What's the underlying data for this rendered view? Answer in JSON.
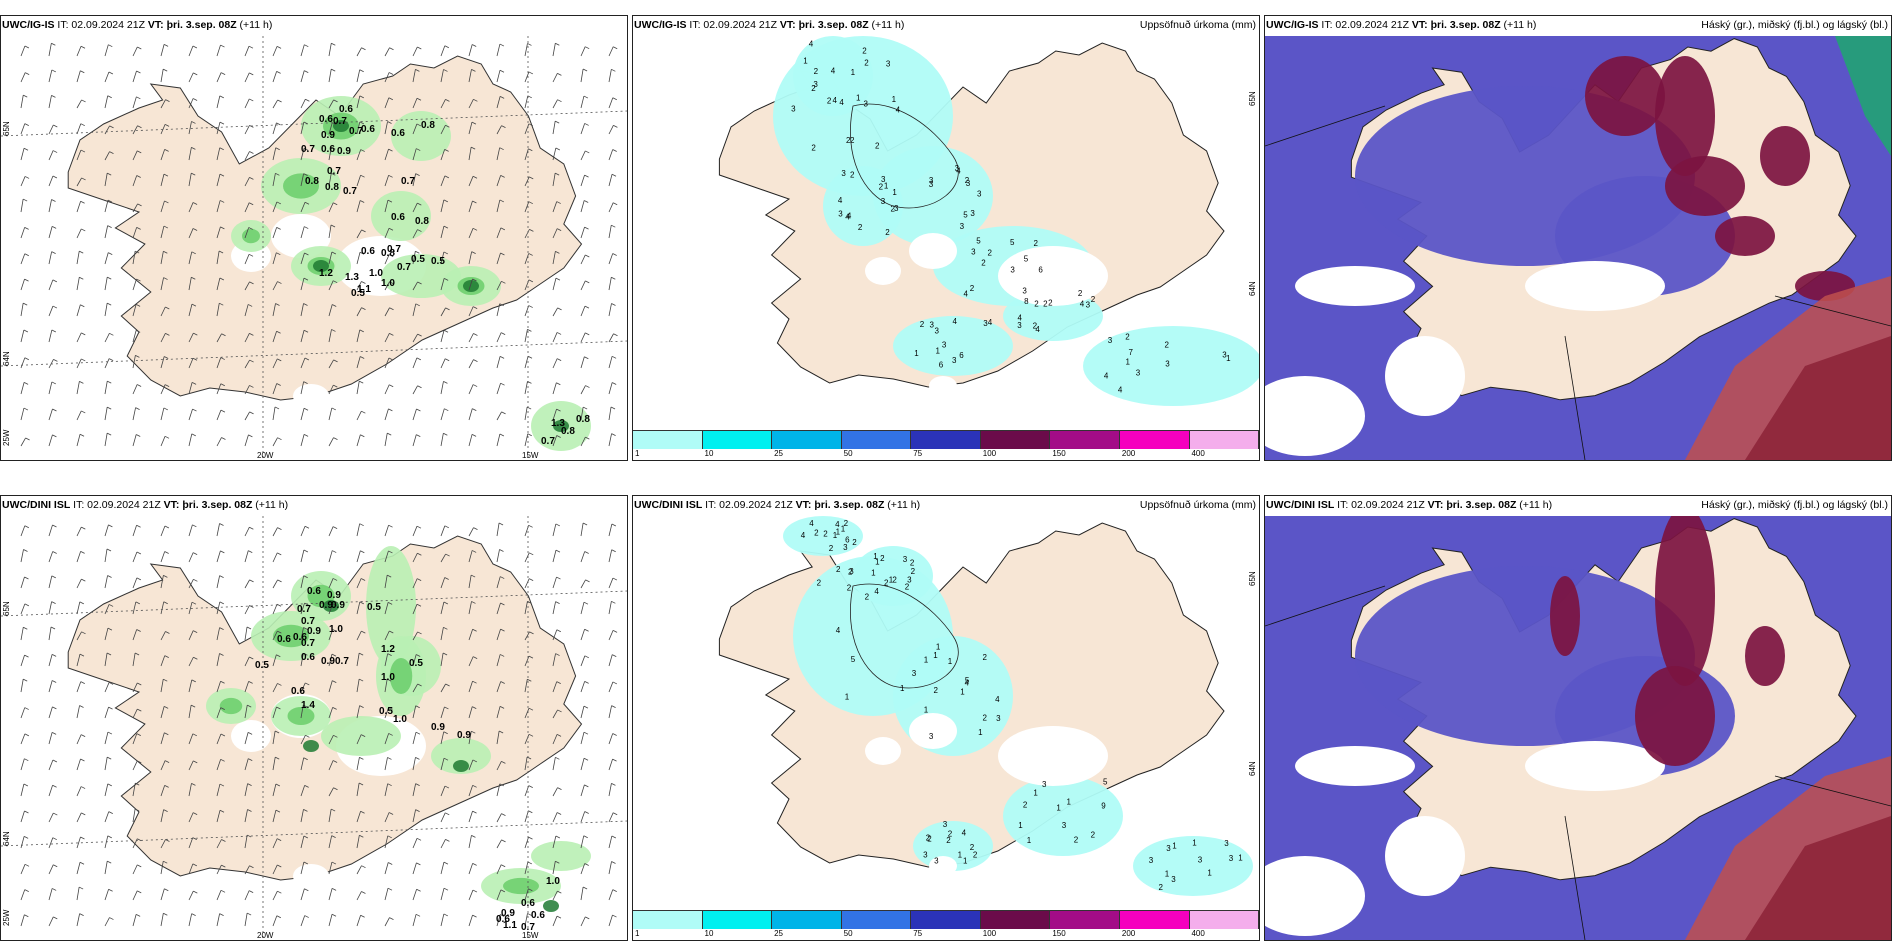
{
  "panels": [
    {
      "id": "p1",
      "title_model": "UWC/IG-IS",
      "title_it": "IT: 02.09.2024 21Z",
      "title_vt_label": "VT:",
      "title_vt": "þri. 3.sep. 08Z",
      "title_offset": "(+11 h)",
      "right_label": "",
      "lon_labels": [
        "20W",
        "15W"
      ],
      "lat_labels": [
        "65N",
        "64N",
        "25W"
      ],
      "values": [
        "0.6",
        "0.6",
        "0.7",
        "0.9",
        "0.7",
        "0.6",
        "0.7",
        "0.6",
        "0.9",
        "0.7",
        "0.8",
        "0.8",
        "0.7",
        "0.6",
        "0.8",
        "0.7",
        "0.6",
        "0.8",
        "0.7",
        "0.5",
        "0.6",
        "0.8",
        "0.7",
        "0.5",
        "1.0",
        "1.3",
        "1.2",
        "1.0",
        "0.5",
        "1.1",
        "1.3",
        "0.8",
        "0.8",
        "0.7"
      ]
    },
    {
      "id": "p2",
      "title_model": "UWC/IG-IS",
      "title_it": "IT: 02.09.2024 21Z",
      "title_vt_label": "VT:",
      "title_vt": "þri. 3.sep. 08Z",
      "title_offset": "(+11 h)",
      "right_label": "Uppsöfnuð úrkoma (mm)",
      "lat_labels": [
        "65N",
        "64N"
      ],
      "values": [
        "4",
        "3",
        "3",
        "3",
        "3",
        "2",
        "3",
        "3",
        "2",
        "3",
        "4",
        "5",
        "6",
        "3",
        "4",
        "2",
        "2",
        "3",
        "4",
        "5",
        "6",
        "8",
        "3",
        "1",
        "2",
        "3",
        "2",
        "3",
        "4",
        "4",
        "3",
        "4",
        "3",
        "3",
        "3",
        "2",
        "2",
        "4",
        "4",
        "4",
        "3",
        "3",
        "3",
        "2",
        "1",
        "3",
        "2",
        "4",
        "3",
        "4",
        "4",
        "2",
        "3",
        "2",
        "1",
        "2",
        "2",
        "3",
        "2",
        "3",
        "3",
        "4",
        "2",
        "4",
        "2",
        "1",
        "1",
        "2",
        "3",
        "2",
        "1",
        "2",
        "2",
        "2",
        "2",
        "4",
        "4",
        "2",
        "7",
        "3",
        "1",
        "5",
        "3",
        "6",
        "1",
        "2",
        "3",
        "1",
        "1",
        "2",
        "2",
        "5",
        "3",
        "2"
      ],
      "colorbar": {
        "colors": [
          "#b0fcf7",
          "#00f0f0",
          "#00b4e8",
          "#3273e5",
          "#2b33b8",
          "#6b0b4a",
          "#a30c87",
          "#f500be",
          "#f4aeec"
        ],
        "ticks": [
          "1",
          "10",
          "25",
          "50",
          "75",
          "100",
          "150",
          "200",
          "400"
        ]
      }
    },
    {
      "id": "p3",
      "title_model": "UWC/IG-IS",
      "title_it": "IT: 02.09.2024 21Z",
      "title_vt_label": "VT:",
      "title_vt": "þri. 3.sep. 08Z",
      "title_offset": "(+11 h)",
      "right_label": "Háský (gr.), miðský (fj.bl.) og lágský (bl.)"
    },
    {
      "id": "p4",
      "title_model": "UWC/DINI ISL",
      "title_it": "IT: 02.09.2024 21Z",
      "title_vt_label": "VT:",
      "title_vt": "þri. 3.sep. 08Z",
      "title_offset": "(+11 h)",
      "right_label": "",
      "lon_labels": [
        "20W",
        "15W"
      ],
      "lat_labels": [
        "65N",
        "64N",
        "25W"
      ],
      "values": [
        "0.6",
        "0.9",
        "0.9",
        "0.7",
        "0.9",
        "0.5",
        "0.7",
        "0.6",
        "0.9",
        "1.0",
        "0.6",
        "0.7",
        "0.6",
        "0.9",
        "0.7",
        "0.5",
        "1.2",
        "0.5",
        "1.0",
        "0.6",
        "1.4",
        "0.5",
        "1.0",
        "0.9",
        "0.9",
        "0.9",
        "0.6",
        "0.6",
        "1.1",
        "0.7",
        "0.6",
        "1.0"
      ]
    },
    {
      "id": "p5",
      "title_model": "UWC/DINI ISL",
      "title_it": "IT: 02.09.2024 21Z",
      "title_vt_label": "VT:",
      "title_vt": "þri. 3.sep. 08Z",
      "title_offset": "(+11 h)",
      "right_label": "Uppsöfnuð úrkoma (mm)",
      "lat_labels": [
        "65N",
        "64N"
      ],
      "values": [
        "2",
        "1",
        "1",
        "2",
        "1",
        "1",
        "2",
        "1",
        "5",
        "4",
        "2",
        "1",
        "3",
        "2",
        "2",
        "2",
        "2",
        "2",
        "2",
        "3",
        "3",
        "3",
        "3",
        "4",
        "3",
        "3",
        "3",
        "3",
        "2",
        "1",
        "2",
        "3",
        "2",
        "3",
        "1",
        "2",
        "2",
        "1",
        "2",
        "2",
        "1",
        "2",
        "2",
        "3",
        "2",
        "1",
        "5",
        "3",
        "4",
        "4",
        "4",
        "2",
        "1",
        "1",
        "1",
        "2",
        "2",
        "1",
        "2",
        "2",
        "1",
        "1",
        "1",
        "1",
        "1",
        "3",
        "1",
        "1",
        "3",
        "3",
        "5",
        "4",
        "6",
        "4",
        "3",
        "1",
        "2",
        "3",
        "1",
        "4",
        "1",
        "9",
        "2",
        "2",
        "1",
        "1",
        "1",
        "2"
      ],
      "colorbar": {
        "colors": [
          "#b0fcf7",
          "#00f0f0",
          "#00b4e8",
          "#3273e5",
          "#2b33b8",
          "#6b0b4a",
          "#a30c87",
          "#f500be",
          "#f4aeec"
        ],
        "ticks": [
          "1",
          "10",
          "25",
          "50",
          "75",
          "100",
          "150",
          "200",
          "400"
        ]
      }
    },
    {
      "id": "p6",
      "title_model": "UWC/DINI ISL",
      "title_it": "IT: 02.09.2024 21Z",
      "title_vt_label": "VT:",
      "title_vt": "þri. 3.sep. 08Z",
      "title_offset": "(+11 h)",
      "right_label": "Háský (gr.), miðský (fj.bl.) og lágský (bl.)"
    }
  ],
  "colors": {
    "land": "#f7e6d5",
    "green_light": "#b9f0b4",
    "green_mid": "#6fcf6f",
    "green_dark": "#1f7a32",
    "precip": "#b0fcf7",
    "cloud_high": "#7c1440",
    "cloud_mid": "#5b55c7",
    "cloud_low_red": "#c0504d"
  }
}
